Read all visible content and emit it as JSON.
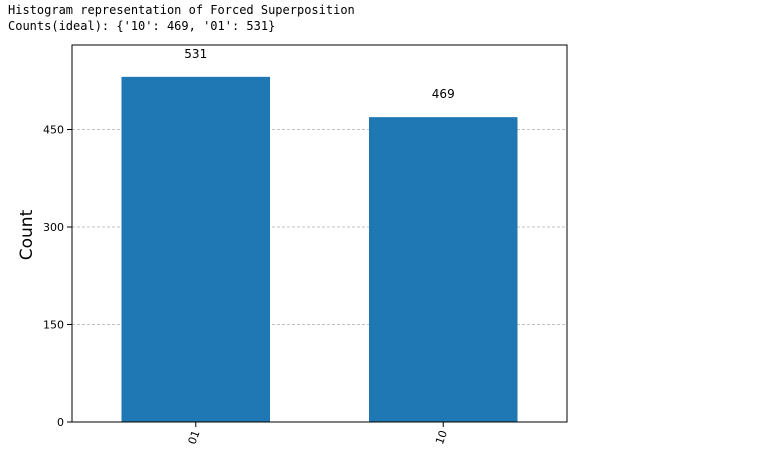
{
  "console": {
    "line1": "Histogram representation of Forced Superposition",
    "line2": "Counts(ideal): {'10': 469, '01': 531}"
  },
  "chart_data": {
    "type": "bar",
    "categories": [
      "01",
      "10"
    ],
    "values": [
      531,
      469
    ],
    "title": "",
    "xlabel": "",
    "ylabel": "Count",
    "ylim": [
      0,
      580
    ],
    "yticks": [
      0,
      150,
      300,
      450
    ],
    "grid": "y-dashed",
    "bar_color": "#1f77b4",
    "grid_color": "#b0b0b0",
    "data_labels": true,
    "xtick_rotation": 70
  }
}
